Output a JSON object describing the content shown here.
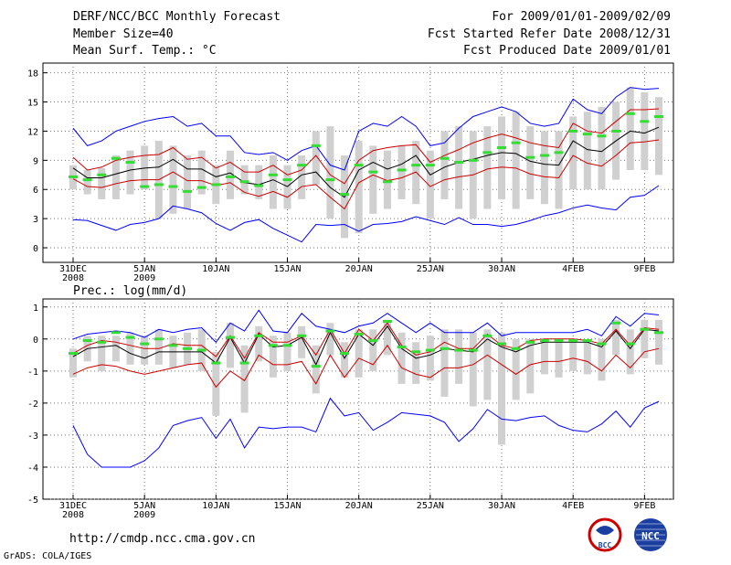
{
  "header": {
    "title": "DERF/NCC/BCC Monthly Forecast",
    "members": "Member Size=40",
    "variable": "Mean Surf. Temp.: °C",
    "period": "For 2009/01/01-2009/02/09",
    "started": "Fcst Started Refer Date 2008/12/31",
    "produced": "Fcst Produced Date 2009/01/01"
  },
  "footer": {
    "url": "http://cmdp.ncc.cma.gov.cn",
    "credit": "GrADS: COLA/IGES",
    "logo_left": "BCC",
    "logo_right": "NCC"
  },
  "colors": {
    "max_min": "#0000ff",
    "spread": "#cc0000",
    "mean": "#000000",
    "box": "#d0d0d0",
    "obs": "#33dd33"
  },
  "chart_data": [
    {
      "type": "line",
      "title": "Mean Surf. Temp.: °C",
      "xlabel": "",
      "ylabel": "°C",
      "ylim": [
        -1.5,
        19
      ],
      "yticks": [
        0,
        3,
        6,
        9,
        12,
        15,
        18
      ],
      "xticks": [
        {
          "day": 0,
          "label": "31DEC",
          "sub": "2008"
        },
        {
          "day": 5,
          "label": "5JAN",
          "sub": "2009"
        },
        {
          "day": 10,
          "label": "10JAN",
          "sub": ""
        },
        {
          "day": 15,
          "label": "15JAN",
          "sub": ""
        },
        {
          "day": 20,
          "label": "20JAN",
          "sub": ""
        },
        {
          "day": 25,
          "label": "25JAN",
          "sub": ""
        },
        {
          "day": 30,
          "label": "30JAN",
          "sub": ""
        },
        {
          "day": 35,
          "label": "4FEB",
          "sub": ""
        },
        {
          "day": 40,
          "label": "9FEB",
          "sub": ""
        }
      ],
      "series": [
        {
          "name": "max",
          "values": [
            12.3,
            10.5,
            11,
            12,
            12.5,
            13,
            13.3,
            13.5,
            12.5,
            12.8,
            11.5,
            11.5,
            9.8,
            9.6,
            9.8,
            9,
            10,
            10.5,
            8.5,
            8,
            12,
            12.8,
            12.5,
            13.5,
            12.5,
            10.5,
            10.8,
            12.3,
            13.5,
            14,
            14.5,
            14,
            12.8,
            12.5,
            12.8,
            15.3,
            14.2,
            13.8,
            15.5,
            16.5,
            16.3,
            16.4
          ]
        },
        {
          "name": "upper",
          "values": [
            9.3,
            8,
            8.3,
            9,
            9.3,
            9.5,
            9.6,
            10.3,
            9.1,
            9.3,
            8.2,
            8.8,
            7.8,
            7.8,
            8.5,
            7.5,
            8,
            9.5,
            7.5,
            6.6,
            9,
            10,
            10.3,
            10.5,
            10.6,
            8.8,
            9.5,
            10.1,
            10.8,
            11.3,
            11.7,
            11.3,
            10.8,
            10.5,
            10.3,
            12.8,
            12,
            11.8,
            13,
            14.2,
            14.2,
            14.3
          ]
        },
        {
          "name": "mean",
          "values": [
            8.2,
            7.2,
            7.2,
            7.6,
            8,
            8.2,
            8.3,
            9.1,
            8.1,
            8.1,
            7.3,
            7.7,
            6.7,
            6.5,
            7,
            6.3,
            7.5,
            7.8,
            6.2,
            5.2,
            8,
            8.8,
            8.1,
            8.6,
            9.5,
            7.5,
            8.3,
            8.8,
            9.1,
            9.5,
            9.8,
            9.7,
            8.9,
            8.6,
            8.5,
            11,
            10.1,
            9.9,
            11,
            12,
            11.8,
            12.4
          ]
        },
        {
          "name": "lower",
          "values": [
            7.1,
            6.3,
            6.2,
            6.6,
            6.9,
            7,
            7,
            7.8,
            6.9,
            6.9,
            6.4,
            6.7,
            5.7,
            5.3,
            5.8,
            5.2,
            6.3,
            6.5,
            5.2,
            4,
            6.7,
            7.5,
            6.9,
            7.2,
            7.8,
            6.3,
            7,
            7.3,
            7.5,
            8.1,
            8.3,
            8.2,
            7.6,
            7.3,
            7.2,
            9.5,
            8.7,
            8.4,
            9.5,
            10.8,
            10.9,
            11.1
          ]
        },
        {
          "name": "min",
          "values": [
            2.9,
            2.8,
            2.3,
            1.8,
            2.4,
            2.6,
            3,
            4.3,
            4,
            3.6,
            2.5,
            1.8,
            2.6,
            2.9,
            2,
            1.3,
            0.6,
            2.4,
            2.3,
            2.4,
            1.7,
            2.4,
            2.5,
            2.7,
            3.2,
            2.8,
            2.4,
            3.1,
            2.4,
            2.4,
            2.2,
            2.4,
            2.8,
            3.3,
            3.6,
            4.1,
            4.4,
            4.1,
            3.9,
            5.2,
            5.4,
            6.4
          ]
        }
      ],
      "boxes": {
        "low": [
          6,
          5.5,
          5,
          5,
          5.5,
          6,
          3,
          3.5,
          4,
          5.5,
          4.5,
          5,
          5.5,
          5,
          4,
          4,
          5,
          6.5,
          3,
          1,
          1.5,
          3.5,
          4,
          5,
          4.5,
          3,
          5,
          4,
          3,
          4,
          5,
          4,
          5,
          4.5,
          4,
          6,
          6,
          6,
          7,
          8,
          8,
          7.5
        ],
        "high": [
          8.5,
          8,
          8.2,
          9.5,
          10,
          10.5,
          11,
          10.5,
          9.5,
          10,
          8.5,
          10,
          8.5,
          8.5,
          9.5,
          8.5,
          9.5,
          12,
          12.5,
          9.5,
          11,
          10.5,
          10,
          10.5,
          11,
          10,
          12,
          12.5,
          12,
          12.5,
          13.5,
          14,
          12.5,
          12,
          12,
          13.5,
          14,
          14.5,
          15,
          16.5,
          16,
          15.5
        ]
      },
      "observed": [
        7.3,
        7,
        7.5,
        9.2,
        8.8,
        6.3,
        6.5,
        6.3,
        5.8,
        6.2,
        6.5,
        7.3,
        6.8,
        6.4,
        7.5,
        7,
        8.5,
        10.5,
        7,
        5.5,
        8.5,
        7.8,
        6.8,
        8,
        8.5,
        8.5,
        9.2,
        8.8,
        9,
        9.8,
        10.3,
        10.8,
        9.3,
        9.5,
        9.8,
        12,
        11.7,
        11.5,
        12,
        13.8,
        13,
        13.5
      ]
    },
    {
      "type": "line",
      "title": "Prec.: log(mm/d)",
      "xlabel": "",
      "ylabel": "log(mm/d)",
      "ylim": [
        -5,
        1.25
      ],
      "yticks": [
        -5,
        -4,
        -3,
        -2,
        -1,
        0,
        1
      ],
      "xticks": [
        {
          "day": 0,
          "label": "31DEC",
          "sub": "2008"
        },
        {
          "day": 5,
          "label": "5JAN",
          "sub": "2009"
        },
        {
          "day": 10,
          "label": "10JAN",
          "sub": ""
        },
        {
          "day": 15,
          "label": "15JAN",
          "sub": ""
        },
        {
          "day": 20,
          "label": "20JAN",
          "sub": ""
        },
        {
          "day": 25,
          "label": "25JAN",
          "sub": ""
        },
        {
          "day": 30,
          "label": "30JAN",
          "sub": ""
        },
        {
          "day": 35,
          "label": "4FEB",
          "sub": ""
        },
        {
          "day": 40,
          "label": "9FEB",
          "sub": ""
        }
      ],
      "series": [
        {
          "name": "max",
          "values": [
            0,
            0.15,
            0.2,
            0.25,
            0.2,
            0.05,
            0.3,
            0.2,
            0.3,
            0.35,
            -0.1,
            0.5,
            0.25,
            0.9,
            0.25,
            0.2,
            0.8,
            0.4,
            0.3,
            0.2,
            0.4,
            0.5,
            0.8,
            0.5,
            0.2,
            0.5,
            0.2,
            0.2,
            0.2,
            0.5,
            0.1,
            0.2,
            0.2,
            0.2,
            0.2,
            0.2,
            0.3,
            0.1,
            0.7,
            0.4,
            0.8,
            0.75
          ]
        },
        {
          "name": "upper",
          "values": [
            -0.45,
            -0.2,
            -0.05,
            -0.1,
            -0.2,
            -0.3,
            -0.3,
            -0.15,
            -0.2,
            -0.2,
            -0.55,
            0.1,
            -0.6,
            0.2,
            -0.1,
            -0.1,
            0.1,
            -0.5,
            0.3,
            -0.45,
            0.3,
            -0.05,
            0.5,
            -0.2,
            -0.5,
            -0.4,
            -0.1,
            -0.3,
            -0.3,
            0.15,
            -0.2,
            -0.3,
            -0.05,
            0,
            0,
            0,
            -0.05,
            -0.15,
            0.3,
            -0.2,
            0.35,
            0.3
          ]
        },
        {
          "name": "mean",
          "values": [
            -0.55,
            -0.3,
            -0.25,
            -0.2,
            -0.45,
            -0.6,
            -0.4,
            -0.4,
            -0.4,
            -0.4,
            -0.75,
            0.05,
            -0.75,
            0.15,
            -0.25,
            -0.2,
            0.05,
            -0.8,
            0.2,
            -0.6,
            0.15,
            -0.2,
            0.4,
            -0.3,
            -0.6,
            -0.5,
            -0.3,
            -0.35,
            -0.4,
            0,
            -0.25,
            -0.4,
            -0.2,
            -0.1,
            -0.1,
            -0.1,
            -0.1,
            -0.25,
            0.25,
            -0.3,
            0.3,
            0.25
          ]
        },
        {
          "name": "lower",
          "values": [
            -1.1,
            -0.9,
            -0.8,
            -0.85,
            -1,
            -1.1,
            -1,
            -0.9,
            -0.8,
            -0.75,
            -1.5,
            -1,
            -1.3,
            -0.5,
            -0.8,
            -0.8,
            -0.7,
            -1.4,
            -0.5,
            -1.2,
            -0.6,
            -0.8,
            -0.2,
            -0.9,
            -1.1,
            -1.2,
            -0.9,
            -0.9,
            -0.8,
            -0.5,
            -0.8,
            -1.1,
            -0.8,
            -0.7,
            -0.7,
            -0.6,
            -0.7,
            -1,
            -0.5,
            -0.9,
            -0.4,
            -0.3
          ]
        },
        {
          "name": "min",
          "values": [
            -2.7,
            -3.6,
            -4,
            -4,
            -4,
            -3.8,
            -3.4,
            -2.7,
            -2.55,
            -2.45,
            -3.1,
            -2.5,
            -3.4,
            -2.75,
            -2.8,
            -2.75,
            -2.75,
            -2.9,
            -1.85,
            -2.4,
            -2.3,
            -2.85,
            -2.6,
            -2.3,
            -2.35,
            -2.4,
            -2.6,
            -3.2,
            -2.8,
            -2.2,
            -2.5,
            -2.55,
            -2.45,
            -2.4,
            -2.7,
            -2.85,
            -2.9,
            -2.65,
            -2.25,
            -2.75,
            -2.15,
            -1.95
          ]
        }
      ],
      "boxes": {
        "low": [
          -1.2,
          -0.7,
          -1,
          -0.7,
          -0.8,
          -0.8,
          -0.8,
          -0.9,
          -0.8,
          -1,
          -2.4,
          -0.9,
          -2.3,
          -0.7,
          -1.2,
          -1,
          -0.6,
          -1.7,
          -0.5,
          -1.2,
          -1.2,
          -1,
          -0.5,
          -1.4,
          -1.4,
          -1.3,
          -1.8,
          -1.4,
          -2.1,
          -1.9,
          -3.3,
          -1.9,
          -1.7,
          -1.1,
          -1.2,
          -1,
          -1.1,
          -1.3,
          -0.5,
          -1.1,
          -0.6,
          -0.8
        ]
      },
      "observed": []
    }
  ]
}
